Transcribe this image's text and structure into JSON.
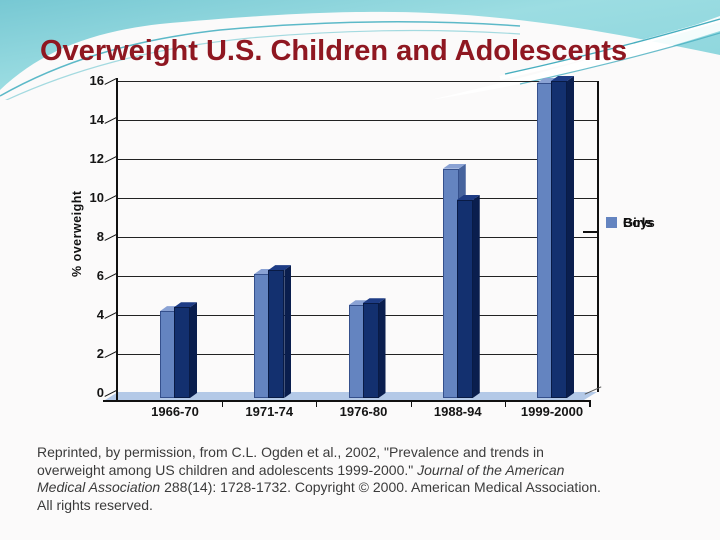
{
  "slide": {
    "title": "Overweight U.S. Children and Adolescents",
    "title_color": "#8f1721"
  },
  "chart_data": {
    "type": "bar",
    "style": "3d-clustered-column",
    "title": "",
    "categories": [
      "1966-70",
      "1971-74",
      "1976-80",
      "1988-94",
      "1999-2000"
    ],
    "series": [
      {
        "name": "Boys",
        "color": "#6484c0",
        "values": [
          4.2,
          6.1,
          4.5,
          11.5,
          15.9
        ]
      },
      {
        "name": "Girls",
        "color": "#13306f",
        "values": [
          4.4,
          6.3,
          4.6,
          9.9,
          16.0
        ]
      }
    ],
    "xlabel": "",
    "ylabel": "% overweight",
    "ylim": [
      0,
      16
    ],
    "yticks": [
      0,
      2,
      4,
      6,
      8,
      10,
      12,
      14,
      16
    ],
    "grid": true,
    "legend_position": "right",
    "legend_order": [
      "Girls",
      "Boys"
    ],
    "floor_color": "#b4c9e7"
  },
  "citation": {
    "lines": [
      [
        {
          "t": "Reprinted, by permission, from C.L. Ogden et al., 2002, \"Prevalence and trends in",
          "i": false
        }
      ],
      [
        {
          "t": "overweight among US children and adolescents 1999-2000.\" ",
          "i": false
        },
        {
          "t": "Journal of the American",
          "i": true
        }
      ],
      [
        {
          "t": "Medical Association",
          "i": true
        },
        {
          "t": " 288(14): 1728-1732. Copyright © 2000. American Medical Association.",
          "i": false
        }
      ],
      [
        {
          "t": "All rights reserved.",
          "i": false
        }
      ]
    ]
  }
}
